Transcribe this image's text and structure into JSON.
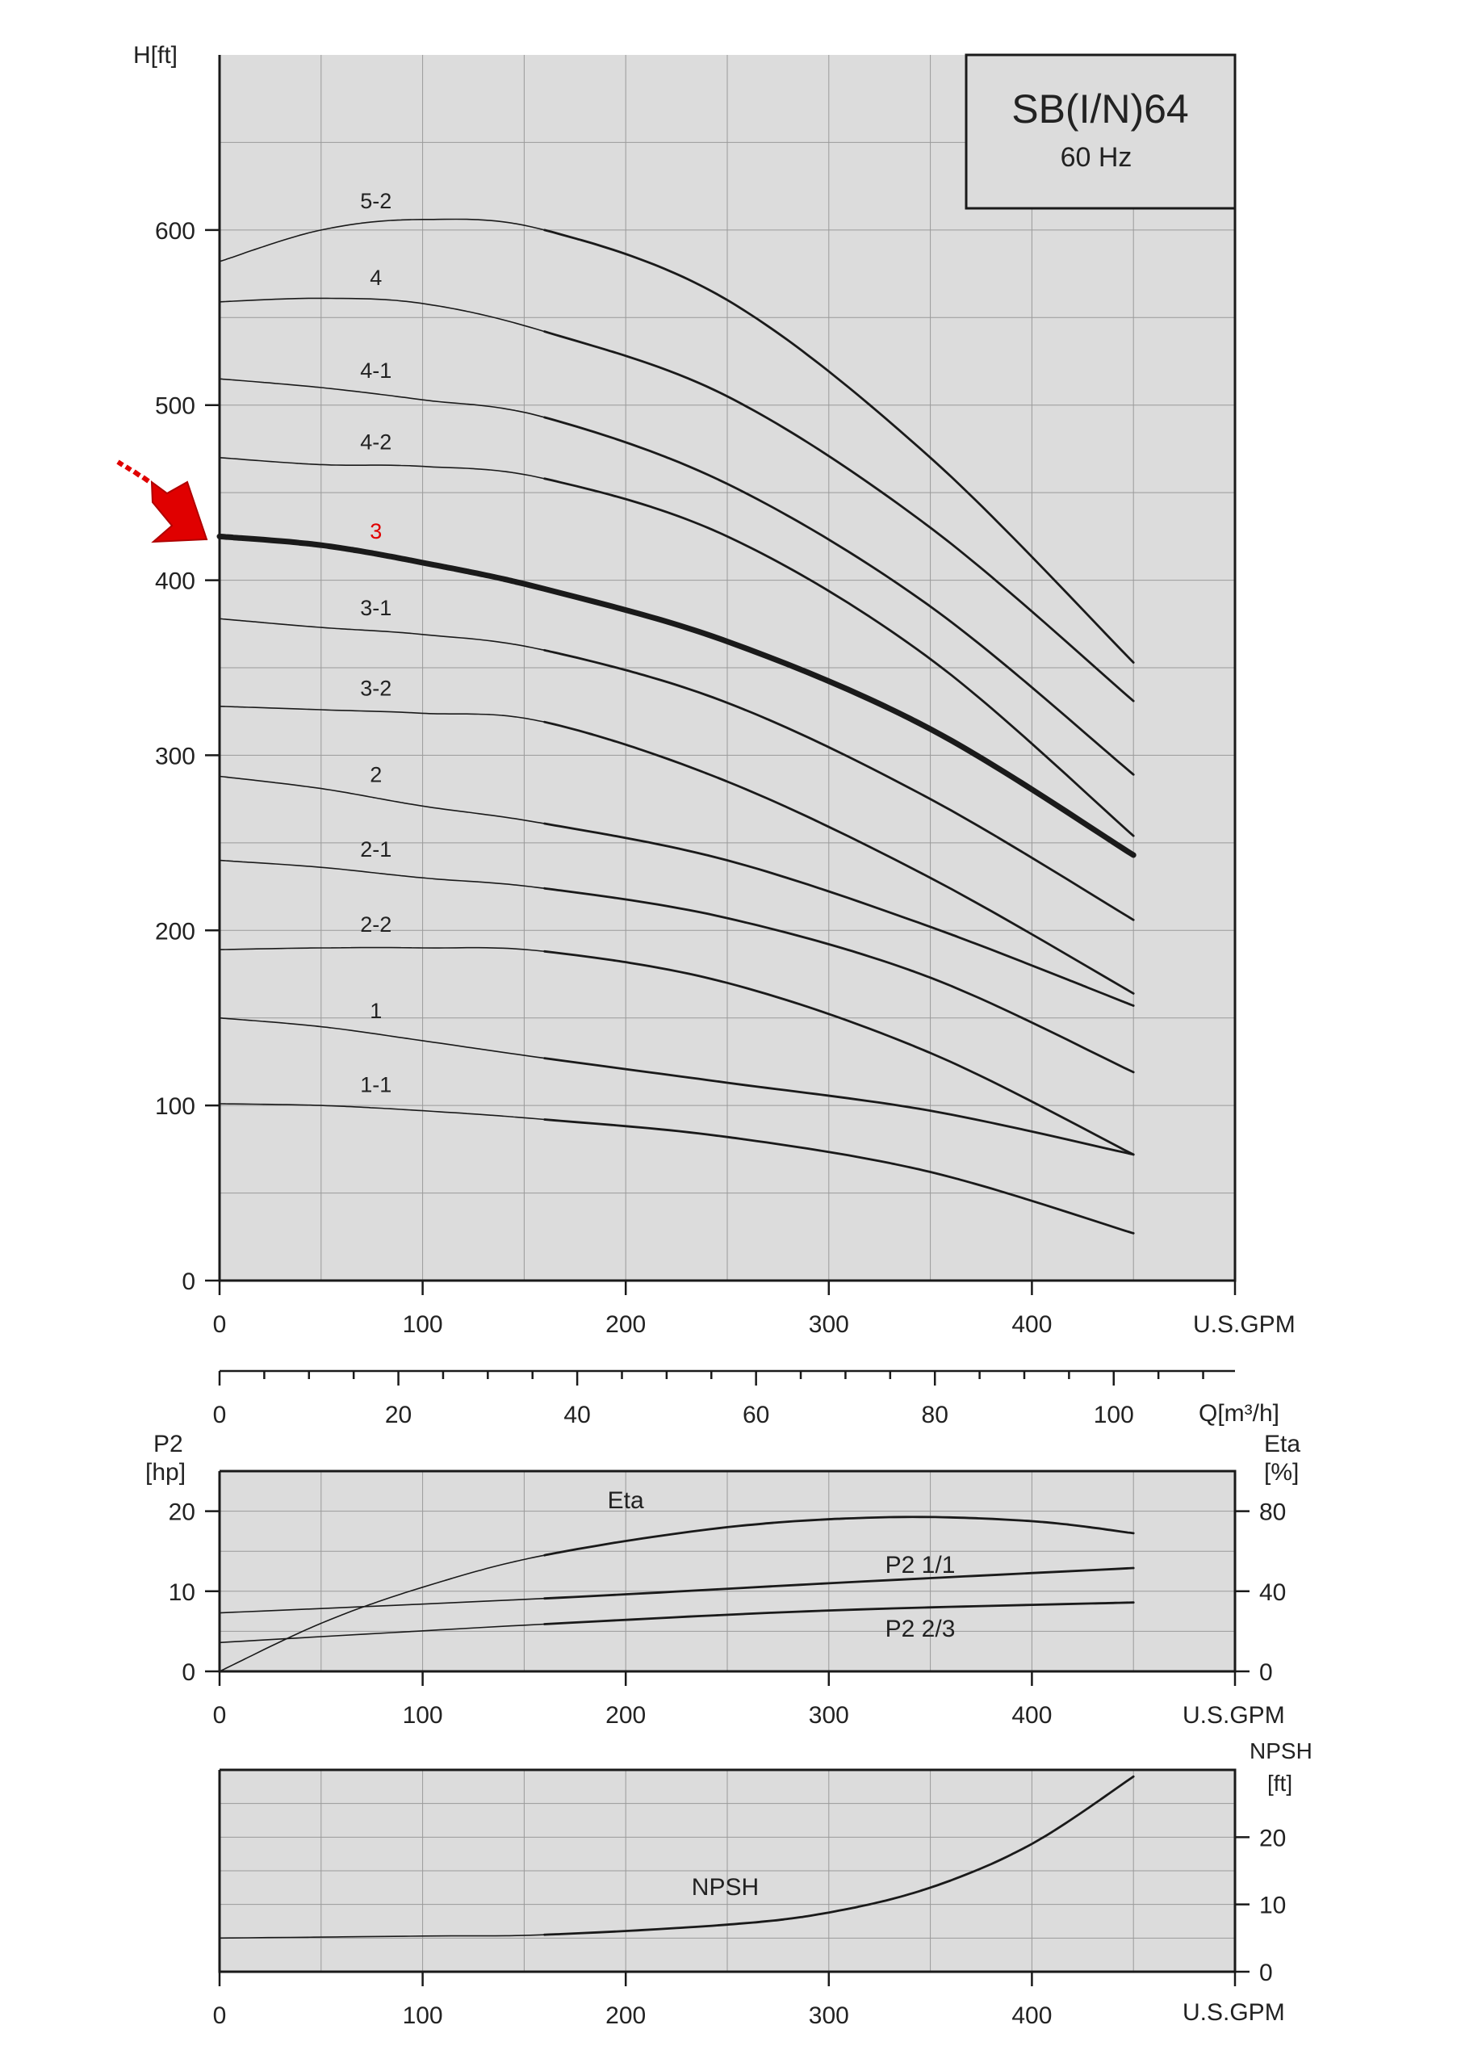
{
  "colors": {
    "panel": "#dcdcdc",
    "grid": "#9a9a9a",
    "axis": "#1a1a1a",
    "curve": "#1a1a1a",
    "highlight": "#e00000"
  },
  "title": {
    "model": "SB(I/N)64",
    "frequency": "60 Hz"
  },
  "icons": {
    "pointer": "red-arrow-icon"
  },
  "chart_data": [
    {
      "type": "line",
      "name_ref": "head",
      "ylabel": "H[ft]",
      "xlabel": "U.S.GPM",
      "xlim": [
        0,
        500
      ],
      "ylim": [
        0,
        700
      ],
      "xticks": [
        0,
        100,
        200,
        300,
        400
      ],
      "yticks": [
        0,
        100,
        200,
        300,
        400,
        500,
        600
      ],
      "highlight": "3",
      "series": [
        {
          "name": "5-2",
          "x": [
            0,
            50,
            100,
            160,
            250,
            350,
            450
          ],
          "y": [
            582,
            600,
            606,
            600,
            560,
            470,
            353
          ]
        },
        {
          "name": "4",
          "x": [
            0,
            50,
            100,
            160,
            250,
            350,
            450
          ],
          "y": [
            559,
            561,
            558,
            542,
            505,
            430,
            331
          ]
        },
        {
          "name": "4-1",
          "x": [
            0,
            50,
            100,
            160,
            250,
            350,
            450
          ],
          "y": [
            515,
            510,
            503,
            493,
            455,
            385,
            289
          ]
        },
        {
          "name": "4-2",
          "x": [
            0,
            50,
            100,
            160,
            250,
            350,
            450
          ],
          "y": [
            470,
            466,
            465,
            458,
            425,
            355,
            254
          ]
        },
        {
          "name": "3",
          "x": [
            0,
            50,
            100,
            160,
            250,
            350,
            450
          ],
          "y": [
            425,
            420,
            410,
            395,
            365,
            315,
            243
          ]
        },
        {
          "name": "3-1",
          "x": [
            0,
            50,
            100,
            160,
            250,
            350,
            450
          ],
          "y": [
            378,
            373,
            369,
            360,
            330,
            275,
            206
          ]
        },
        {
          "name": "3-2",
          "x": [
            0,
            50,
            100,
            160,
            250,
            350,
            450
          ],
          "y": [
            328,
            326,
            324,
            319,
            285,
            230,
            164
          ]
        },
        {
          "name": "2",
          "x": [
            0,
            50,
            100,
            160,
            250,
            350,
            450
          ],
          "y": [
            288,
            281,
            271,
            261,
            240,
            202,
            157
          ]
        },
        {
          "name": "2-1",
          "x": [
            0,
            50,
            100,
            160,
            250,
            350,
            450
          ],
          "y": [
            240,
            236,
            230,
            224,
            207,
            173,
            119
          ]
        },
        {
          "name": "2-2",
          "x": [
            0,
            50,
            100,
            160,
            250,
            350,
            450
          ],
          "y": [
            189,
            190,
            190,
            188,
            170,
            130,
            72
          ]
        },
        {
          "name": "1",
          "x": [
            0,
            50,
            100,
            160,
            250,
            350,
            450
          ],
          "y": [
            150,
            145,
            137,
            127,
            113,
            97,
            72
          ]
        },
        {
          "name": "1-1",
          "x": [
            0,
            50,
            100,
            160,
            250,
            350,
            450
          ],
          "y": [
            101,
            100,
            97,
            92,
            82,
            62,
            27
          ]
        }
      ]
    },
    {
      "type": "axis",
      "name_ref": "flow_m3h",
      "label": "Q[m³/h]",
      "ticks": [
        0,
        20,
        40,
        60,
        80,
        100
      ]
    },
    {
      "type": "line",
      "name_ref": "power_eta",
      "ylabel_left_1": "P2",
      "ylabel_left_2": "[hp]",
      "ylabel_right_1": "Eta",
      "ylabel_right_2": "[%]",
      "xlabel": "U.S.GPM",
      "xlim": [
        0,
        500
      ],
      "ylim_left": [
        0,
        25
      ],
      "ylim_right": [
        0,
        100
      ],
      "yticks_left": [
        0,
        10,
        20
      ],
      "yticks_right": [
        0,
        40,
        80
      ],
      "xticks": [
        0,
        100,
        200,
        300,
        400
      ],
      "series": [
        {
          "name": "Eta",
          "axis": "right",
          "x": [
            0,
            50,
            100,
            160,
            250,
            330,
            400,
            450
          ],
          "y": [
            0,
            24,
            42,
            58,
            72,
            77,
            75,
            69
          ]
        },
        {
          "name": "P2 1/1",
          "axis": "left",
          "x": [
            0,
            160,
            300,
            450
          ],
          "y": [
            7.3,
            9.1,
            11.0,
            12.9
          ]
        },
        {
          "name": "P2 2/3",
          "axis": "left",
          "x": [
            0,
            160,
            300,
            450
          ],
          "y": [
            3.6,
            5.9,
            7.6,
            8.6
          ]
        }
      ]
    },
    {
      "type": "line",
      "name_ref": "npsh",
      "ylabel_right_1": "NPSH",
      "ylabel_right_2": "[ft]",
      "xlabel": "U.S.GPM",
      "xlim": [
        0,
        500
      ],
      "ylim_right": [
        0,
        30
      ],
      "yticks_right": [
        0,
        10,
        20
      ],
      "xticks": [
        0,
        100,
        200,
        300,
        400
      ],
      "series": [
        {
          "name": "NPSH",
          "x": [
            0,
            100,
            160,
            250,
            300,
            350,
            400,
            450
          ],
          "y": [
            5,
            5.3,
            5.5,
            7,
            8.8,
            12.5,
            19,
            29
          ]
        }
      ]
    }
  ]
}
